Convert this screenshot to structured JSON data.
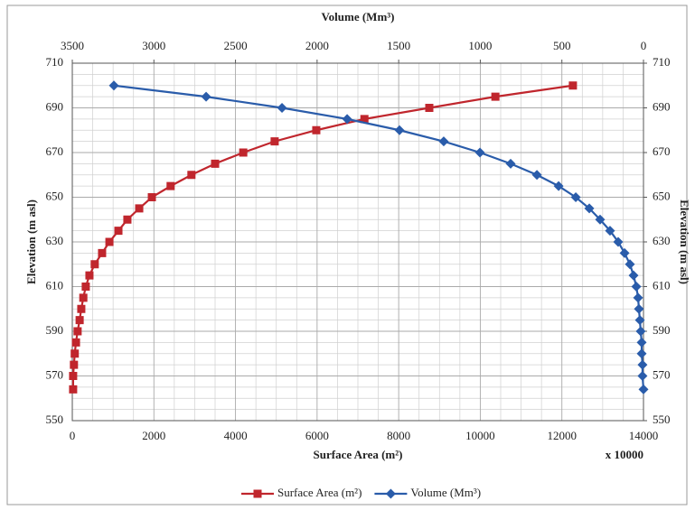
{
  "chart_data": {
    "type": "line",
    "title": "Volume (Mm³)",
    "xlabel": "Surface Area (m²)",
    "x_multiplier": "x 10000",
    "ylabel": "Elevation (m asl)",
    "y2label": "Elevation (m asl)",
    "xlim": [
      0,
      14000
    ],
    "xticks": [
      0,
      2000,
      4000,
      6000,
      8000,
      10000,
      12000,
      14000
    ],
    "x2lim": [
      3500,
      0
    ],
    "x2ticks": [
      3500,
      3000,
      2500,
      2000,
      1500,
      1000,
      500,
      0
    ],
    "ylim": [
      550,
      710
    ],
    "yticks": [
      550,
      570,
      590,
      610,
      630,
      650,
      670,
      690,
      710
    ],
    "y2lim": [
      550,
      710
    ],
    "y2ticks": [
      550,
      570,
      590,
      610,
      630,
      650,
      670,
      690,
      710
    ],
    "grid": true,
    "legend": "bottom",
    "series": [
      {
        "name": "Surface Area (m²)",
        "color": "#c0262d",
        "marker": "square",
        "axis": "x",
        "x": [
          20,
          20,
          40,
          60,
          90,
          130,
          180,
          220,
          270,
          330,
          420,
          550,
          730,
          910,
          1130,
          1350,
          1640,
          1950,
          2410,
          2920,
          3500,
          4190,
          4960,
          5980,
          7160,
          8750,
          10370,
          12270
        ],
        "y": [
          564,
          570,
          575,
          580,
          585,
          590,
          595,
          600,
          605,
          610,
          615,
          620,
          625,
          630,
          635,
          640,
          645,
          650,
          655,
          660,
          665,
          670,
          675,
          680,
          685,
          690,
          695,
          700
        ]
      },
      {
        "name": "Volume (Mm³)",
        "color": "#2a5caa",
        "marker": "diamond",
        "axis": "x2",
        "x": [
          3245,
          2680,
          2215,
          1816,
          1495,
          1224,
          1002,
          814,
          653,
          520,
          415,
          332,
          266,
          205,
          155,
          116,
          83,
          61,
          44,
          33,
          28,
          22,
          17,
          11,
          11,
          6,
          6,
          0
        ],
        "y": [
          700,
          695,
          690,
          685,
          680,
          675,
          670,
          665,
          660,
          655,
          650,
          645,
          640,
          635,
          630,
          625,
          620,
          615,
          610,
          605,
          600,
          595,
          590,
          585,
          580,
          575,
          570,
          564
        ]
      }
    ]
  }
}
